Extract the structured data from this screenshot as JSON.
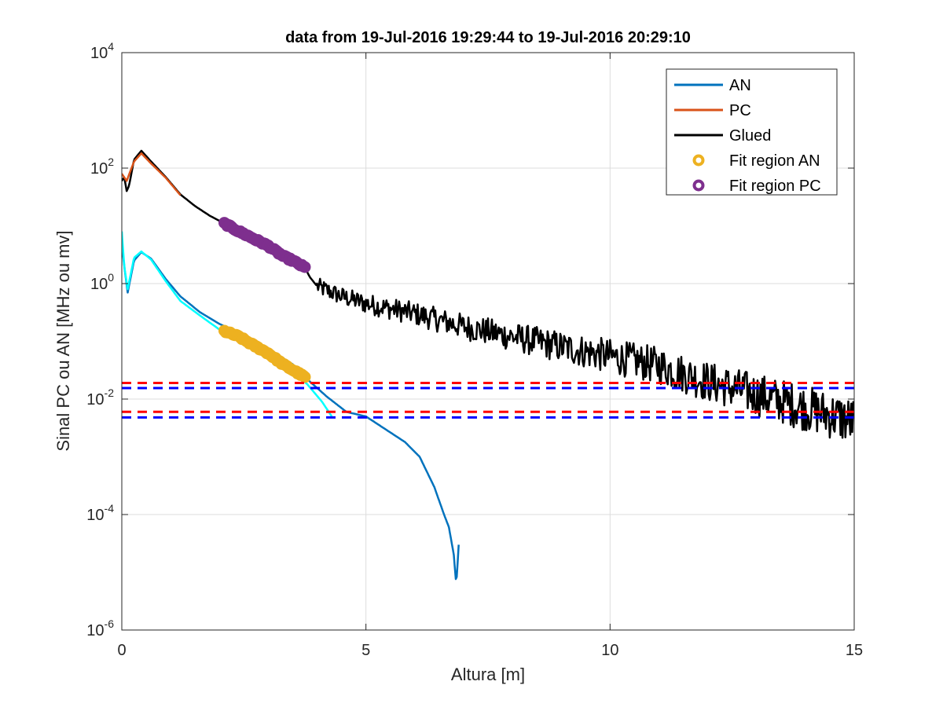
{
  "chart_data": {
    "type": "line",
    "title": "data from 19-Jul-2016 19:29:44 to 19-Jul-2016 20:29:10",
    "xlabel": "Altura [m]",
    "ylabel": "Sinal PC ou AN [MHz ou mv]",
    "xlim": [
      0,
      15
    ],
    "ylim": [
      1e-06,
      10000
    ],
    "yscale": "log",
    "grid": true,
    "legend_position": "top-right",
    "xticks": [
      {
        "value": 0,
        "label": "0"
      },
      {
        "value": 5,
        "label": "5"
      },
      {
        "value": 10,
        "label": "10"
      },
      {
        "value": 15,
        "label": "15"
      }
    ],
    "yticks": [
      {
        "value": 1e-06,
        "base": "10",
        "exp": "-6"
      },
      {
        "value": 0.0001,
        "base": "10",
        "exp": "-4"
      },
      {
        "value": 0.01,
        "base": "10",
        "exp": "-2"
      },
      {
        "value": 1,
        "base": "10",
        "exp": "0"
      },
      {
        "value": 100,
        "base": "10",
        "exp": "2"
      },
      {
        "value": 10000,
        "base": "10",
        "exp": "4"
      }
    ],
    "legend": [
      {
        "label": "AN",
        "color": "#0072BD",
        "marker": "line"
      },
      {
        "label": "PC",
        "color": "#D95319",
        "marker": "line"
      },
      {
        "label": "Glued",
        "color": "#000000",
        "marker": "line"
      },
      {
        "label": "Fit region AN",
        "color": "#EDB120",
        "marker": "circle"
      },
      {
        "label": "Fit region PC",
        "color": "#7E2F8E",
        "marker": "circle"
      }
    ],
    "series": [
      {
        "name": "Glued",
        "color": "#000000",
        "style": "line",
        "width": 2.5,
        "points": [
          [
            0.0,
            60
          ],
          [
            0.05,
            70
          ],
          [
            0.1,
            40
          ],
          [
            0.15,
            50
          ],
          [
            0.25,
            140
          ],
          [
            0.4,
            200
          ],
          [
            0.6,
            130
          ],
          [
            0.9,
            70
          ],
          [
            1.2,
            35
          ],
          [
            1.5,
            22
          ],
          [
            1.8,
            15
          ],
          [
            2.1,
            11
          ],
          [
            2.5,
            7.5
          ],
          [
            3.0,
            4.5
          ],
          [
            3.5,
            2.5
          ],
          [
            3.75,
            1.9
          ],
          [
            3.85,
            1.3
          ],
          [
            4.0,
            0.9
          ],
          [
            4.5,
            0.6
          ],
          [
            5.0,
            0.45
          ],
          [
            6.0,
            0.3
          ],
          [
            7.0,
            0.18
          ],
          [
            8.0,
            0.12
          ],
          [
            9.0,
            0.08
          ],
          [
            10.0,
            0.055
          ],
          [
            11.0,
            0.038
          ],
          [
            12.0,
            0.02
          ],
          [
            13.0,
            0.012
          ],
          [
            14.0,
            0.007
          ],
          [
            15.0,
            0.004
          ]
        ],
        "noise_start": 4.0,
        "noise_amp": 0.15
      },
      {
        "name": "PC",
        "color": "#D95319",
        "style": "line",
        "width": 2.5,
        "points": [
          [
            0.0,
            80
          ],
          [
            0.1,
            60
          ],
          [
            0.25,
            130
          ],
          [
            0.4,
            180
          ],
          [
            0.6,
            120
          ],
          [
            0.9,
            68
          ],
          [
            1.2,
            34
          ]
        ]
      },
      {
        "name": "AN",
        "color": "#0072BD",
        "style": "line",
        "width": 2.5,
        "points": [
          [
            0.0,
            5
          ],
          [
            0.05,
            2
          ],
          [
            0.12,
            0.7
          ],
          [
            0.25,
            2.5
          ],
          [
            0.4,
            3.5
          ],
          [
            0.6,
            2.7
          ],
          [
            0.9,
            1.2
          ],
          [
            1.2,
            0.6
          ],
          [
            1.6,
            0.32
          ],
          [
            2.0,
            0.2
          ],
          [
            2.5,
            0.13
          ],
          [
            3.0,
            0.075
          ],
          [
            3.5,
            0.04
          ],
          [
            3.8,
            0.022
          ],
          [
            4.2,
            0.011
          ],
          [
            4.6,
            0.006
          ],
          [
            5.0,
            0.005
          ],
          [
            5.4,
            0.003
          ],
          [
            5.8,
            0.0018
          ],
          [
            6.1,
            0.001
          ],
          [
            6.4,
            0.0003
          ],
          [
            6.6,
            0.0001
          ],
          [
            6.7,
            6e-05
          ],
          [
            6.8,
            2e-05
          ],
          [
            6.85,
            6e-06
          ],
          [
            6.9,
            3e-05
          ]
        ]
      },
      {
        "name": "AN (raw)",
        "color": "#00FFFF",
        "style": "line",
        "width": 2.5,
        "points": [
          [
            0.0,
            8
          ],
          [
            0.05,
            2
          ],
          [
            0.12,
            0.8
          ],
          [
            0.25,
            2.8
          ],
          [
            0.4,
            3.6
          ],
          [
            0.6,
            2.6
          ],
          [
            0.9,
            1.1
          ],
          [
            1.2,
            0.5
          ],
          [
            1.6,
            0.28
          ],
          [
            2.0,
            0.16
          ],
          [
            2.5,
            0.1
          ],
          [
            3.0,
            0.06
          ],
          [
            3.5,
            0.03
          ],
          [
            3.8,
            0.018
          ],
          [
            4.1,
            0.009
          ],
          [
            4.3,
            0.005
          ]
        ],
        "noise_start": 4.3,
        "noise_low": 0.0006,
        "noise_high": 0.005
      },
      {
        "name": "Fit region PC",
        "color": "#7E2F8E",
        "style": "markers",
        "points": [
          [
            2.1,
            11
          ],
          [
            2.4,
            8
          ],
          [
            2.7,
            6
          ],
          [
            3.0,
            4.5
          ],
          [
            3.3,
            3
          ],
          [
            3.5,
            2.5
          ],
          [
            3.75,
            1.9
          ]
        ]
      },
      {
        "name": "Fit region AN",
        "color": "#EDB120",
        "style": "markers",
        "points": [
          [
            2.1,
            0.15
          ],
          [
            2.4,
            0.12
          ],
          [
            2.7,
            0.085
          ],
          [
            3.0,
            0.062
          ],
          [
            3.3,
            0.04
          ],
          [
            3.5,
            0.032
          ],
          [
            3.75,
            0.024
          ]
        ]
      }
    ],
    "hlines": [
      {
        "value": 0.019,
        "color": "#FF0000",
        "dash": true
      },
      {
        "value": 0.0155,
        "color": "#0000FF",
        "dash": true
      },
      {
        "value": 0.006,
        "color": "#FF0000",
        "dash": true
      },
      {
        "value": 0.0048,
        "color": "#0000FF",
        "dash": true
      }
    ]
  }
}
